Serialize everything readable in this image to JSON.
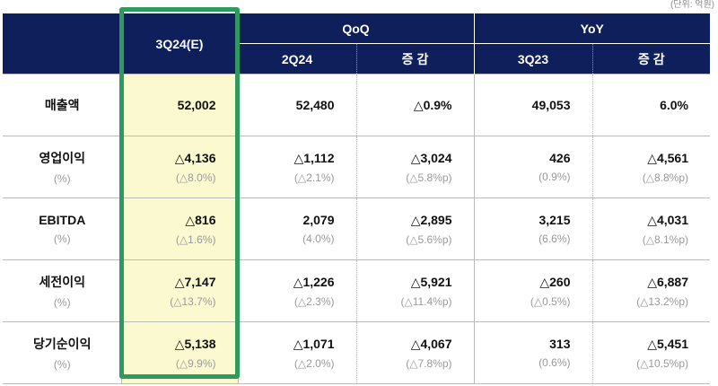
{
  "unit": "(단위: 억원)",
  "header": {
    "current": "3Q24(E)",
    "qoq": "QoQ",
    "yoy": "YoY",
    "prev_q": "2Q24",
    "qoq_change": "증 감",
    "prev_y": "3Q23",
    "yoy_change": "증 감"
  },
  "rows": [
    {
      "label": "매출액",
      "sub": "",
      "v": [
        "52,002",
        "52,480",
        "△0.9%",
        "49,053",
        "6.0%"
      ],
      "p": [
        "",
        "",
        "",
        "",
        ""
      ]
    },
    {
      "label": "영업이익",
      "sub": "(%)",
      "v": [
        "△4,136",
        "△1,112",
        "△3,024",
        "426",
        "△4,561"
      ],
      "p": [
        "(△8.0%)",
        "(△2.1%)",
        "(△5.8%p)",
        "(0.9%)",
        "(△8.8%p)"
      ]
    },
    {
      "label": "EBITDA",
      "sub": "(%)",
      "v": [
        "△816",
        "2,079",
        "△2,895",
        "3,215",
        "△4,031"
      ],
      "p": [
        "(△1.6%)",
        "(4.0%)",
        "(△5.6%p)",
        "(6.6%)",
        "(△8.1%p)"
      ]
    },
    {
      "label": "세전이익",
      "sub": "(%)",
      "v": [
        "△7,147",
        "△1,226",
        "△5,921",
        "△260",
        "△6,887"
      ],
      "p": [
        "(△13.7%)",
        "(△2.3%)",
        "(△11.4%p)",
        "(△0.5%)",
        "(△13.2%p)"
      ]
    },
    {
      "label": "당기순이익",
      "sub": "(%)",
      "v": [
        "△5,138",
        "△1,071",
        "△4,067",
        "313",
        "△5,451"
      ],
      "p": [
        "(△9.9%)",
        "(△2.0%)",
        "(△7.8%p)",
        "(0.6%)",
        "(△10.5%p)"
      ]
    }
  ],
  "colors": {
    "header": "#0f1f5c",
    "highlight_fill": "#fbf9cf",
    "highlight_border": "#2e9a5e"
  }
}
